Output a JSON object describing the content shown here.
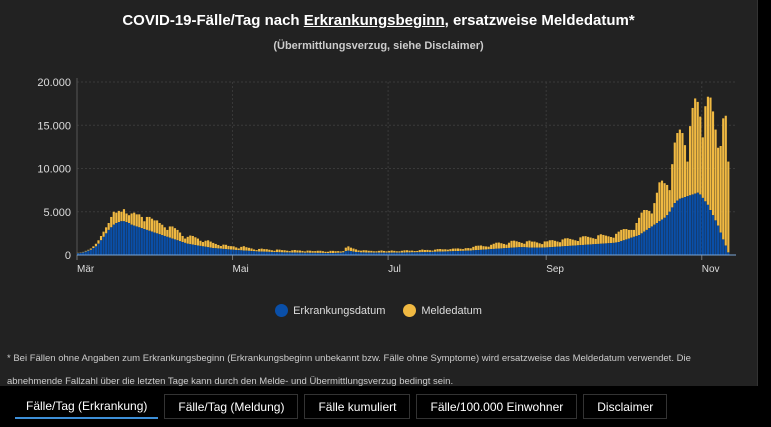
{
  "title": {
    "prefix": "COVID-19-Fälle/Tag nach ",
    "link": "Erkrankungsbeginn",
    "suffix": ", ersatzweise Meldedatum*"
  },
  "subtitle": "(Übermittlungsverzug, siehe Disclaimer)",
  "footnote": {
    "line1": "* Bei Fällen ohne Angaben zum Erkrankungsbeginn (Erkrankungsbeginn unbekannt bzw. Fälle ohne Symptome) wird ersatzweise das Meldedatum verwendet. Die",
    "line2": "abnehmende Fallzahl über die letzten Tage kann durch den Melde- und Übermittlungsverzug bedingt sein."
  },
  "tabs": [
    {
      "label": "Fälle/Tag (Erkrankung)",
      "active": true
    },
    {
      "label": "Fälle/Tag (Meldung)"
    },
    {
      "label": "Fälle kumuliert"
    },
    {
      "label": "Fälle/100.000 Einwohner"
    },
    {
      "label": "Disclaimer"
    }
  ],
  "chart_data": {
    "type": "bar",
    "stacked": true,
    "grid": true,
    "legend_placement": "bottom",
    "x_start": "2020-03-01",
    "x_end": "2020-11-11",
    "x_unit": "day",
    "xticks": [
      {
        "date": "2020-03-01",
        "label": "Mär"
      },
      {
        "date": "2020-05-01",
        "label": "Mai"
      },
      {
        "date": "2020-07-01",
        "label": "Jul"
      },
      {
        "date": "2020-09-01",
        "label": "Sep"
      },
      {
        "date": "2020-11-01",
        "label": "Nov"
      }
    ],
    "yticks": [
      {
        "value": 0,
        "label": "0"
      },
      {
        "value": 5000,
        "label": "5.000"
      },
      {
        "value": 10000,
        "label": "10.000"
      },
      {
        "value": 15000,
        "label": "15.000"
      },
      {
        "value": 20000,
        "label": "20.000"
      }
    ],
    "ylim": [
      0,
      20000
    ],
    "series": [
      {
        "name": "Erkrankungsdatum",
        "color": "#0a4fa8",
        "values": [
          200,
          250,
          300,
          400,
          500,
          600,
          800,
          1000,
          1300,
          1700,
          2100,
          2500,
          2900,
          3200,
          3500,
          3700,
          3800,
          3900,
          3900,
          3800,
          3700,
          3500,
          3400,
          3300,
          3200,
          3100,
          3000,
          2900,
          2800,
          2700,
          2600,
          2500,
          2400,
          2300,
          2200,
          2100,
          2000,
          1900,
          1800,
          1700,
          1600,
          1500,
          1400,
          1300,
          1250,
          1200,
          1150,
          1100,
          1050,
          1000,
          950,
          900,
          850,
          800,
          780,
          760,
          740,
          700,
          680,
          650,
          620,
          600,
          580,
          560,
          540,
          520,
          500,
          480,
          460,
          440,
          420,
          400,
          390,
          380,
          370,
          360,
          350,
          340,
          330,
          320,
          310,
          300,
          300,
          300,
          290,
          280,
          280,
          270,
          270,
          260,
          260,
          250,
          250,
          250,
          240,
          240,
          240,
          230,
          230,
          230,
          230,
          240,
          250,
          260,
          300,
          450,
          500,
          450,
          400,
          350,
          330,
          300,
          300,
          290,
          290,
          280,
          280,
          280,
          280,
          270,
          270,
          270,
          270,
          270,
          280,
          280,
          280,
          290,
          290,
          300,
          300,
          310,
          310,
          320,
          320,
          330,
          330,
          340,
          350,
          360,
          370,
          380,
          390,
          400,
          410,
          420,
          430,
          440,
          450,
          460,
          470,
          480,
          490,
          500,
          520,
          540,
          560,
          580,
          600,
          620,
          640,
          660,
          680,
          700,
          720,
          740,
          760,
          780,
          800,
          820,
          840,
          860,
          880,
          900,
          900,
          900,
          880,
          860,
          850,
          850,
          850,
          850,
          860,
          870,
          880,
          900,
          920,
          940,
          960,
          980,
          1000,
          1020,
          1040,
          1060,
          1080,
          1100,
          1120,
          1140,
          1160,
          1180,
          1200,
          1220,
          1240,
          1260,
          1280,
          1300,
          1320,
          1340,
          1360,
          1380,
          1400,
          1450,
          1500,
          1600,
          1700,
          1800,
          1900,
          2000,
          2100,
          2200,
          2300,
          2500,
          2700,
          2900,
          3100,
          3300,
          3500,
          3700,
          3900,
          4100,
          4300,
          4600,
          5000,
          5500,
          6000,
          6300,
          6500,
          6600,
          6700,
          6800,
          6900,
          7000,
          7100,
          7200,
          7000,
          6600,
          6200,
          5800,
          5200,
          4600,
          4000,
          3400,
          2600,
          1800,
          1100,
          300
        ]
      },
      {
        "name": "Meldedatum",
        "color": "#f0b942",
        "values": [
          50,
          50,
          60,
          80,
          100,
          150,
          200,
          300,
          400,
          500,
          600,
          700,
          800,
          1200,
          1500,
          1200,
          1300,
          1100,
          1400,
          1000,
          900,
          1300,
          1500,
          1400,
          1500,
          1300,
          900,
          1500,
          1600,
          1500,
          1400,
          1500,
          1300,
          1200,
          1000,
          800,
          1300,
          1400,
          1300,
          1200,
          1000,
          700,
          500,
          800,
          1000,
          1000,
          900,
          800,
          600,
          500,
          700,
          800,
          700,
          600,
          500,
          400,
          300,
          500,
          500,
          400,
          400,
          400,
          300,
          200,
          400,
          500,
          400,
          350,
          300,
          200,
          150,
          300,
          350,
          300,
          300,
          250,
          200,
          150,
          300,
          300,
          250,
          250,
          200,
          150,
          250,
          300,
          250,
          250,
          200,
          150,
          250,
          250,
          200,
          200,
          250,
          250,
          200,
          150,
          150,
          250,
          250,
          200,
          200,
          150,
          150,
          400,
          500,
          400,
          350,
          300,
          200,
          200,
          250,
          250,
          200,
          200,
          150,
          150,
          200,
          250,
          200,
          150,
          200,
          250,
          200,
          150,
          150,
          200,
          250,
          250,
          200,
          200,
          150,
          150,
          250,
          300,
          250,
          250,
          200,
          150,
          250,
          300,
          300,
          250,
          250,
          200,
          250,
          300,
          300,
          300,
          250,
          200,
          300,
          300,
          250,
          400,
          500,
          500,
          500,
          400,
          350,
          300,
          500,
          600,
          700,
          700,
          600,
          500,
          400,
          600,
          800,
          800,
          700,
          600,
          500,
          400,
          700,
          800,
          700,
          700,
          600,
          500,
          400,
          700,
          700,
          800,
          800,
          700,
          600,
          500,
          800,
          900,
          900,
          800,
          700,
          600,
          500,
          900,
          1000,
          1000,
          900,
          800,
          700,
          600,
          1000,
          1100,
          1000,
          900,
          800,
          700,
          600,
          1000,
          1200,
          1300,
          1300,
          1200,
          1000,
          900,
          800,
          1500,
          2000,
          2400,
          2500,
          2300,
          2000,
          1500,
          2500,
          3500,
          4500,
          4500,
          4000,
          3500,
          2500,
          5000,
          7000,
          7800,
          8000,
          7500,
          6000,
          4000,
          8000,
          10000,
          11000,
          10500,
          9000,
          7000,
          11000,
          12500,
          13000,
          12000,
          10500,
          9000,
          10000,
          14000,
          15000,
          10500
        ]
      }
    ]
  }
}
